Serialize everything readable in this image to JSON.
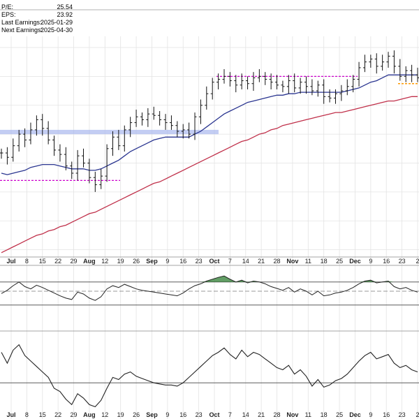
{
  "stats": [
    {
      "label": "P/E:",
      "value": "25.54"
    },
    {
      "label": "EPS:",
      "value": "23.92"
    },
    {
      "label": "Last Earnings:",
      "value": "2025-01-29"
    },
    {
      "label": "Next Earnings:",
      "value": "2025-04-30"
    }
  ],
  "colors": {
    "price": "#111111",
    "ma_short": "#2a3590",
    "ma_long": "#c0304a",
    "resistance": "#cc00cc",
    "support_band": "#aab8ee",
    "orange_marker": "#ff9900",
    "grid": "#e3e3e3",
    "momentum_fill": "#2e7d32",
    "osc_line": "#222222"
  },
  "chart_data": [
    {
      "type": "ohlc",
      "panel": "price",
      "x_ticks": [
        {
          "label": "Jul",
          "bold": true
        },
        {
          "label": "8"
        },
        {
          "label": "15"
        },
        {
          "label": "22"
        },
        {
          "label": "29"
        },
        {
          "label": "Aug",
          "bold": true
        },
        {
          "label": "12"
        },
        {
          "label": "19"
        },
        {
          "label": "26"
        },
        {
          "label": "Sep",
          "bold": true
        },
        {
          "label": "9"
        },
        {
          "label": "16"
        },
        {
          "label": "23"
        },
        {
          "label": "Oct",
          "bold": true
        },
        {
          "label": "7"
        },
        {
          "label": "14"
        },
        {
          "label": "21"
        },
        {
          "label": "28"
        },
        {
          "label": "Nov",
          "bold": true
        },
        {
          "label": "11"
        },
        {
          "label": "18"
        },
        {
          "label": "25"
        },
        {
          "label": "Dec",
          "bold": true
        },
        {
          "label": "9"
        },
        {
          "label": "16"
        },
        {
          "label": "23"
        },
        {
          "label": "2"
        }
      ],
      "close_series": [
        47,
        44,
        52,
        60,
        56,
        63,
        70,
        64,
        56,
        49,
        46,
        38,
        33,
        45,
        40,
        30,
        25,
        31,
        50,
        58,
        52,
        63,
        68,
        72,
        70,
        74,
        73,
        70,
        68,
        66,
        62,
        63,
        60,
        72,
        80,
        88,
        96,
        98,
        100,
        97,
        94,
        97,
        95,
        99,
        100,
        98,
        96,
        94,
        93,
        97,
        92,
        96,
        93,
        90,
        94,
        86,
        85,
        88,
        90,
        93,
        98,
        106,
        110,
        112,
        107,
        110,
        114,
        107,
        100,
        104,
        101,
        99
      ],
      "ma_short_series": [
        33,
        32,
        33,
        34,
        35,
        37,
        38,
        39,
        39,
        39,
        38,
        37,
        36,
        36,
        36,
        35,
        35,
        36,
        38,
        40,
        42,
        45,
        48,
        50,
        52,
        54,
        56,
        57,
        58,
        58,
        58,
        58,
        58,
        60,
        62,
        65,
        68,
        71,
        74,
        76,
        78,
        80,
        82,
        83,
        84,
        85,
        86,
        87,
        87,
        88,
        88,
        89,
        89,
        89,
        89,
        89,
        89,
        89,
        89,
        90,
        91,
        92,
        94,
        96,
        97,
        99,
        101,
        101,
        101,
        101,
        101,
        101
      ],
      "ma_long_series": [
        -22,
        -20,
        -18,
        -16,
        -14,
        -12,
        -10,
        -9,
        -7,
        -6,
        -4,
        -3,
        -1,
        1,
        3,
        5,
        6,
        8,
        10,
        12,
        14,
        16,
        18,
        20,
        22,
        24,
        26,
        27,
        29,
        31,
        33,
        35,
        37,
        39,
        41,
        43,
        45,
        47,
        49,
        51,
        53,
        55,
        56,
        58,
        60,
        61,
        63,
        64,
        66,
        67,
        68,
        69,
        70,
        71,
        72,
        73,
        74,
        75,
        75,
        76,
        77,
        78,
        79,
        80,
        81,
        82,
        83,
        83,
        84,
        85,
        86,
        86
      ],
      "resistance_jul_aug": 28,
      "resistance_oct_dec": 100,
      "support_band": [
        60,
        63
      ],
      "orange_level": 95
    },
    {
      "type": "line",
      "panel": "momentum",
      "values": [
        45,
        52,
        62,
        70,
        60,
        55,
        63,
        58,
        52,
        46,
        40,
        35,
        32,
        48,
        44,
        35,
        30,
        38,
        55,
        62,
        58,
        65,
        60,
        55,
        52,
        50,
        48,
        46,
        44,
        42,
        40,
        46,
        55,
        62,
        66,
        72,
        76,
        80,
        83,
        76,
        70,
        74,
        68,
        72,
        70,
        66,
        60,
        56,
        52,
        58,
        48,
        55,
        50,
        42,
        50,
        40,
        42,
        46,
        48,
        52,
        58,
        66,
        72,
        74,
        68,
        70,
        72,
        60,
        55,
        58,
        52,
        48
      ],
      "upper_band": 70,
      "midline": 50
    },
    {
      "type": "line",
      "panel": "oscillator",
      "values": [
        28,
        18,
        30,
        35,
        25,
        20,
        15,
        10,
        5,
        -5,
        -8,
        -15,
        -20,
        -10,
        -14,
        -20,
        -22,
        -16,
        -5,
        5,
        3,
        8,
        10,
        6,
        4,
        2,
        0,
        -1,
        -2,
        -2,
        -3,
        0,
        5,
        10,
        15,
        20,
        25,
        28,
        32,
        26,
        22,
        30,
        24,
        28,
        26,
        22,
        18,
        14,
        12,
        16,
        8,
        12,
        6,
        -3,
        3,
        -4,
        -2,
        2,
        4,
        8,
        14,
        20,
        25,
        28,
        22,
        24,
        26,
        18,
        14,
        16,
        12,
        10
      ],
      "zero_line": 0
    }
  ]
}
